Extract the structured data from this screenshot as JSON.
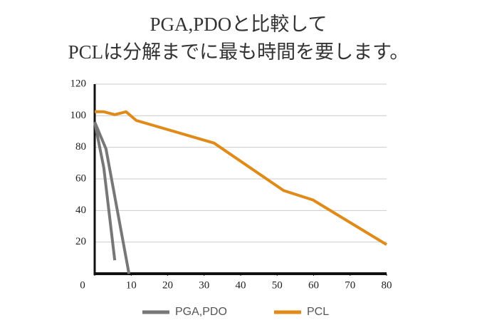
{
  "chart_data": {
    "type": "line",
    "title": [
      "PGA,PDOと比較して",
      "PCLは分解までに最も時間を要します。"
    ],
    "series": [
      {
        "name": "PGA,PDO",
        "color": "#777777",
        "x": [
          0,
          3.1,
          9.4
        ],
        "values": [
          96,
          79,
          0
        ]
      },
      {
        "color": "#777777",
        "x": [
          0,
          2.5,
          5.5
        ],
        "values": [
          96,
          67,
          8.5
        ]
      },
      {
        "name": "PCL",
        "color": "#e08a1a",
        "x": [
          0,
          2.5,
          5.5,
          8.6,
          11.4,
          32.7,
          51.8,
          59.8,
          80
        ],
        "values": [
          102.5,
          102.5,
          100.7,
          102.5,
          97,
          82.7,
          52.6,
          46.7,
          18.4
        ]
      }
    ],
    "xlim": [
      0,
      80
    ],
    "xticks": [
      0,
      10,
      20,
      30,
      40,
      50,
      60,
      70,
      80
    ],
    "ylim": [
      0,
      120
    ],
    "yticks": [
      20,
      40,
      60,
      80,
      100,
      120
    ],
    "grid": true
  }
}
